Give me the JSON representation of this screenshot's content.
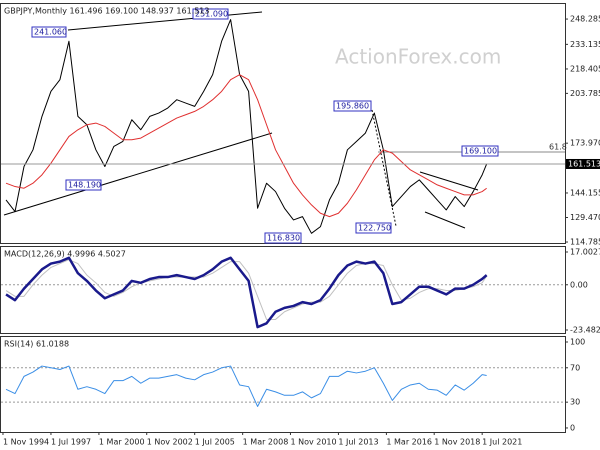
{
  "chart_data": [
    {
      "type": "line",
      "title": "GBPJPY,Monthly  161.496 169.100 148.937 161.513",
      "watermark": "ActionForex.com",
      "x": [
        1995.0,
        1995.5,
        1996.0,
        1996.5,
        1997.0,
        1997.5,
        1998.0,
        1998.5,
        1999.0,
        1999.5,
        2000.0,
        2000.5,
        2001.0,
        2001.5,
        2002.0,
        2002.5,
        2003.0,
        2003.5,
        2004.0,
        2004.5,
        2005.0,
        2005.5,
        2006.0,
        2006.5,
        2007.0,
        2007.5,
        2008.0,
        2008.5,
        2009.0,
        2009.5,
        2010.0,
        2010.5,
        2011.0,
        2011.5,
        2012.0,
        2012.5,
        2013.0,
        2013.5,
        2014.0,
        2014.5,
        2015.0,
        2015.5,
        2016.0,
        2016.5,
        2017.0,
        2017.5,
        2018.0,
        2018.5,
        2019.0,
        2019.5,
        2020.0,
        2020.5,
        2021.0,
        2021.5,
        2021.75
      ],
      "series": [
        {
          "color": "#000000",
          "line_width": 1,
          "values": [
            140,
            133,
            160,
            170,
            190,
            205,
            212,
            235,
            190,
            185,
            170,
            160,
            172,
            175,
            188,
            182,
            190,
            192,
            195,
            200,
            198,
            196,
            205,
            215,
            235,
            248,
            215,
            205,
            135,
            150,
            145,
            135,
            128,
            130,
            120,
            124,
            140,
            150,
            170,
            175,
            180,
            192,
            170,
            136,
            142,
            148,
            152,
            146,
            140,
            134,
            142,
            136,
            145,
            155,
            161.513
          ]
        },
        {
          "color": "#e03030",
          "line_width": 1,
          "values": [
            150,
            148,
            147,
            150,
            155,
            162,
            170,
            178,
            182,
            185,
            186,
            184,
            180,
            176,
            176,
            177,
            180,
            183,
            186,
            189,
            191,
            193,
            196,
            200,
            205,
            212,
            215,
            212,
            200,
            185,
            170,
            160,
            150,
            143,
            137,
            132,
            130,
            132,
            138,
            146,
            155,
            164,
            170,
            168,
            163,
            158,
            155,
            152,
            149,
            147,
            145,
            143,
            143,
            145,
            147
          ]
        }
      ],
      "last_value": 161.513,
      "annotations": [
        "241.060",
        "251.090",
        "148.190",
        "195.860",
        "116.830",
        "122.750",
        "169.100",
        "61.8"
      ],
      "xlim": [
        1994.72,
        2026.11
      ],
      "ylim": [
        114.2,
        257.3
      ],
      "yticks": [
        248.285,
        233.135,
        218.405,
        203.785,
        {
          "value": 173.97,
          "label": "173.970"
        },
        144.155,
        {
          "value": 129.47,
          "label": "129.470"
        },
        114.785
      ]
    },
    {
      "type": "line",
      "title": "MACD(12,26,9) 4.9996 4.5027",
      "x": [
        1995.0,
        1995.5,
        1996.0,
        1996.5,
        1997.0,
        1997.5,
        1998.0,
        1998.5,
        1999.0,
        1999.5,
        2000.0,
        2000.5,
        2001.0,
        2001.5,
        2002.0,
        2002.5,
        2003.0,
        2003.5,
        2004.0,
        2004.5,
        2005.0,
        2005.5,
        2006.0,
        2006.5,
        2007.0,
        2007.5,
        2008.0,
        2008.5,
        2009.0,
        2009.5,
        2010.0,
        2010.5,
        2011.0,
        2011.5,
        2012.0,
        2012.5,
        2013.0,
        2013.5,
        2014.0,
        2014.5,
        2015.0,
        2015.5,
        2016.0,
        2016.5,
        2017.0,
        2017.5,
        2018.0,
        2018.5,
        2019.0,
        2019.5,
        2020.0,
        2020.5,
        2021.0,
        2021.5,
        2021.75
      ],
      "series": [
        {
          "color": "#c0c0c0",
          "line_width": 1,
          "values": [
            -3,
            -6,
            -6,
            0,
            5,
            9,
            11,
            13,
            11,
            5,
            1,
            -4,
            -6,
            -4,
            -1,
            1,
            2,
            3,
            4,
            4,
            4,
            4,
            4,
            6,
            9,
            12,
            12,
            6,
            -6,
            -18,
            -18,
            -14,
            -12,
            -10,
            -9,
            -9,
            -6,
            0,
            6,
            10,
            11,
            11,
            10,
            0,
            -8,
            -7,
            -4,
            -2,
            -2,
            -3,
            -3,
            -2,
            -1,
            1,
            4.5027
          ]
        },
        {
          "color": "#1a1a8c",
          "line_width": 2.5,
          "values": [
            -5,
            -8,
            -2,
            3,
            8,
            11,
            12,
            14,
            6,
            2,
            -3,
            -7,
            -5,
            -3,
            2,
            1,
            3,
            4,
            4,
            5,
            4,
            3,
            5,
            8,
            12,
            14,
            8,
            2,
            -22,
            -20,
            -14,
            -12,
            -11,
            -9,
            -10,
            -8,
            -2,
            5,
            10,
            12,
            11,
            12,
            6,
            -10,
            -9,
            -5,
            -1,
            -1,
            -3,
            -5,
            -2,
            -2,
            0,
            3,
            4.9996
          ]
        }
      ],
      "levels": [
        {
          "value": 0,
          "label": "0.00"
        }
      ],
      "xlim": [
        1994.72,
        2026.11
      ],
      "ylim": [
        -25.04,
        19.6
      ],
      "yticks": [
        17.0027,
        {
          "value": 0,
          "label": "0.00"
        },
        -23.4823
      ]
    },
    {
      "type": "line",
      "title": "RSI(14) 61.0188",
      "x": [
        1995.0,
        1995.5,
        1996.0,
        1996.5,
        1997.0,
        1997.5,
        1998.0,
        1998.5,
        1999.0,
        1999.5,
        2000.0,
        2000.5,
        2001.0,
        2001.5,
        2002.0,
        2002.5,
        2003.0,
        2003.5,
        2004.0,
        2004.5,
        2005.0,
        2005.5,
        2006.0,
        2006.5,
        2007.0,
        2007.5,
        2008.0,
        2008.5,
        2009.0,
        2009.5,
        2010.0,
        2010.5,
        2011.0,
        2011.5,
        2012.0,
        2012.5,
        2013.0,
        2013.5,
        2014.0,
        2014.5,
        2015.0,
        2015.5,
        2016.0,
        2016.5,
        2017.0,
        2017.5,
        2018.0,
        2018.5,
        2019.0,
        2019.5,
        2020.0,
        2020.5,
        2021.0,
        2021.5,
        2021.75
      ],
      "series": [
        {
          "color": "#3a8ee6",
          "line_width": 1,
          "values": [
            45,
            40,
            60,
            65,
            72,
            70,
            68,
            72,
            45,
            48,
            45,
            40,
            55,
            55,
            60,
            52,
            58,
            58,
            60,
            62,
            58,
            56,
            62,
            65,
            70,
            72,
            50,
            48,
            25,
            45,
            42,
            38,
            38,
            42,
            35,
            40,
            60,
            60,
            66,
            64,
            66,
            70,
            52,
            32,
            45,
            50,
            52,
            45,
            44,
            38,
            50,
            44,
            52,
            62,
            61.0188
          ]
        }
      ],
      "levels": [
        70,
        30
      ],
      "xlim": [
        1994.72,
        2026.11
      ],
      "ylim": [
        -4.7,
        105.8
      ],
      "yticks": [
        100,
        70,
        30,
        0
      ],
      "xticks": [
        {
          "value": 1994.83,
          "label": "1 Nov 1994"
        },
        {
          "value": 1997.5,
          "label": "1 Jul 1997"
        },
        {
          "value": 2000.17,
          "label": "1 Mar 2000"
        },
        {
          "value": 2002.83,
          "label": "1 Nov 2002"
        },
        {
          "value": 2005.5,
          "label": "1 Jul 2005"
        },
        {
          "value": 2008.17,
          "label": "1 Mar 2008"
        },
        {
          "value": 2010.83,
          "label": "1 Nov 2010"
        },
        {
          "value": 2013.5,
          "label": "1 Jul 2013"
        },
        {
          "value": 2016.17,
          "label": "1 Mar 2016"
        },
        {
          "value": 2018.83,
          "label": "1 Nov 2018"
        },
        {
          "value": 2021.5,
          "label": "1 Jul 2021"
        }
      ]
    }
  ]
}
